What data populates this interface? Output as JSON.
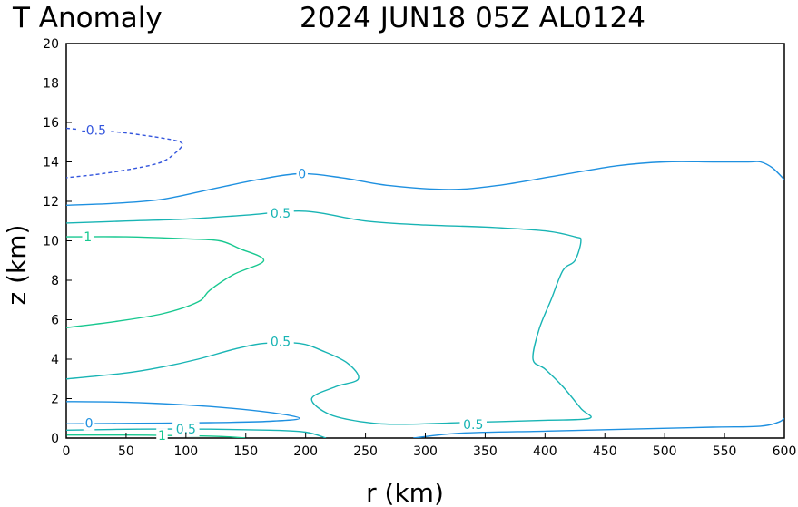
{
  "chart_data": {
    "type": "contour",
    "title_left": "T Anomaly",
    "title_right": "2024 JUN18 05Z   AL0124",
    "xlabel": "r (km)",
    "ylabel": "z (km)",
    "xlim": [
      0,
      600
    ],
    "ylim": [
      0,
      20
    ],
    "xticks": [
      0,
      50,
      100,
      150,
      200,
      250,
      300,
      350,
      400,
      450,
      500,
      550,
      600
    ],
    "yticks": [
      0,
      2,
      4,
      6,
      8,
      10,
      12,
      14,
      16,
      18,
      20
    ],
    "grid": false,
    "colors": {
      "neg": "#3355dd",
      "zero": "#1e90e0",
      "p05": "#18b4b4",
      "p1": "#18c890"
    },
    "contours": [
      {
        "level": -0.5,
        "color": "neg",
        "dashed": true,
        "points": [
          [
            0,
            15.7
          ],
          [
            20,
            15.6
          ],
          [
            45,
            15.5
          ],
          [
            70,
            15.3
          ],
          [
            90,
            15.1
          ],
          [
            97,
            14.9
          ],
          [
            92,
            14.5
          ],
          [
            80,
            14.0
          ],
          [
            60,
            13.7
          ],
          [
            30,
            13.4
          ],
          [
            0,
            13.2
          ]
        ]
      },
      {
        "level": 0,
        "color": "zero",
        "dashed": false,
        "points": [
          [
            0,
            11.8
          ],
          [
            40,
            11.9
          ],
          [
            80,
            12.1
          ],
          [
            120,
            12.6
          ],
          [
            160,
            13.1
          ],
          [
            195,
            13.4
          ],
          [
            230,
            13.2
          ],
          [
            270,
            12.8
          ],
          [
            320,
            12.6
          ],
          [
            360,
            12.8
          ],
          [
            410,
            13.3
          ],
          [
            460,
            13.8
          ],
          [
            500,
            14.0
          ],
          [
            540,
            14.0
          ],
          [
            570,
            14.0
          ],
          [
            580,
            14.0
          ],
          [
            590,
            13.7
          ],
          [
            600,
            13.1
          ]
        ]
      },
      {
        "level": 0.5,
        "color": "p05",
        "dashed": false,
        "points": [
          [
            0,
            10.9
          ],
          [
            50,
            11.0
          ],
          [
            100,
            11.1
          ],
          [
            150,
            11.3
          ],
          [
            200,
            11.5
          ],
          [
            250,
            11.0
          ],
          [
            300,
            10.8
          ],
          [
            350,
            10.7
          ],
          [
            400,
            10.5
          ],
          [
            425,
            10.2
          ],
          [
            430,
            10.0
          ],
          [
            425,
            9.0
          ],
          [
            415,
            8.5
          ],
          [
            405,
            7.0
          ],
          [
            395,
            5.5
          ],
          [
            390,
            4.0
          ],
          [
            400,
            3.5
          ],
          [
            415,
            2.6
          ],
          [
            430,
            1.5
          ],
          [
            437,
            1.0
          ],
          [
            400,
            0.9
          ],
          [
            340,
            0.8
          ],
          [
            280,
            0.7
          ],
          [
            250,
            0.8
          ],
          [
            220,
            1.2
          ],
          [
            205,
            2.0
          ],
          [
            225,
            2.6
          ],
          [
            244,
            3.0
          ],
          [
            235,
            3.8
          ],
          [
            215,
            4.4
          ],
          [
            195,
            4.8
          ],
          [
            165,
            4.8
          ],
          [
            140,
            4.5
          ],
          [
            110,
            4.0
          ],
          [
            80,
            3.6
          ],
          [
            50,
            3.3
          ],
          [
            0,
            3.0
          ]
        ]
      },
      {
        "level": 1,
        "color": "p1",
        "dashed": false,
        "points": [
          [
            0,
            10.2
          ],
          [
            50,
            10.2
          ],
          [
            100,
            10.1
          ],
          [
            128,
            10.0
          ],
          [
            145,
            9.6
          ],
          [
            165,
            9.0
          ],
          [
            140,
            8.3
          ],
          [
            120,
            7.5
          ],
          [
            110,
            6.9
          ],
          [
            80,
            6.3
          ],
          [
            40,
            5.9
          ],
          [
            0,
            5.6
          ]
        ]
      },
      {
        "level": 0,
        "color": "zero",
        "dashed": false,
        "points": [
          [
            0,
            1.85
          ],
          [
            60,
            1.8
          ],
          [
            120,
            1.6
          ],
          [
            170,
            1.3
          ],
          [
            195,
            1.0
          ],
          [
            170,
            0.85
          ],
          [
            120,
            0.78
          ],
          [
            60,
            0.75
          ],
          [
            0,
            0.72
          ]
        ]
      },
      {
        "level": 0.5,
        "color": "p05",
        "dashed": false,
        "points": [
          [
            0,
            0.4
          ],
          [
            60,
            0.45
          ],
          [
            120,
            0.45
          ],
          [
            170,
            0.4
          ],
          [
            200,
            0.3
          ],
          [
            217,
            0.0
          ]
        ]
      },
      {
        "level": 1,
        "color": "p1",
        "dashed": false,
        "points": [
          [
            0,
            0.15
          ],
          [
            50,
            0.15
          ],
          [
            100,
            0.12
          ],
          [
            130,
            0.08
          ],
          [
            150,
            0.0
          ]
        ]
      },
      {
        "level": 0,
        "color": "zero",
        "dashed": false,
        "points": [
          [
            290,
            0.0
          ],
          [
            330,
            0.25
          ],
          [
            400,
            0.35
          ],
          [
            470,
            0.45
          ],
          [
            540,
            0.55
          ],
          [
            580,
            0.6
          ],
          [
            595,
            0.8
          ],
          [
            600,
            1.0
          ]
        ]
      }
    ],
    "contour_labels": [
      {
        "text": "-0.5",
        "x": 23,
        "y": 15.6,
        "color": "neg"
      },
      {
        "text": "0",
        "x": 197,
        "y": 13.4,
        "color": "zero"
      },
      {
        "text": "0.5",
        "x": 179,
        "y": 11.4,
        "color": "p05"
      },
      {
        "text": "1",
        "x": 18,
        "y": 10.2,
        "color": "p1"
      },
      {
        "text": "0.5",
        "x": 179,
        "y": 4.9,
        "color": "p05"
      },
      {
        "text": "0.5",
        "x": 340,
        "y": 0.7,
        "color": "p05"
      },
      {
        "text": "0",
        "x": 19,
        "y": 0.75,
        "color": "zero"
      },
      {
        "text": "0.5",
        "x": 100,
        "y": 0.45,
        "color": "p05"
      },
      {
        "text": "1",
        "x": 80,
        "y": 0.13,
        "color": "p1"
      }
    ]
  }
}
